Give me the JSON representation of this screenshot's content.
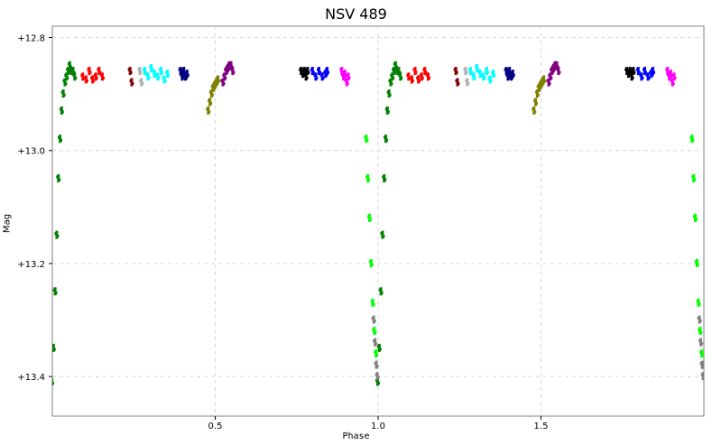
{
  "chart_data": {
    "type": "scatter",
    "title": "NSV 489",
    "xlabel": "Phase",
    "ylabel": "Mag",
    "xlim": [
      0.0,
      2.0
    ],
    "ylim": [
      12.78,
      13.47
    ],
    "y_inverted": true,
    "grid": true,
    "x_ticks": [
      0.5,
      1.0,
      1.5
    ],
    "x_tick_labels": [
      "0.5",
      "1.0",
      "1.5"
    ],
    "y_ticks": [
      12.8,
      13.0,
      13.2,
      13.4
    ],
    "y_tick_labels": [
      "+12.8",
      "+13.0",
      "+13.2",
      "+13.4"
    ],
    "phase_repeat": 1.0,
    "series": [
      {
        "color": "#008000",
        "x": [
          0.0,
          0.005,
          0.01,
          0.015,
          0.02,
          0.025,
          0.03,
          0.035,
          0.04,
          0.045,
          0.05,
          0.055,
          0.06,
          0.065,
          0.07
        ],
        "y": [
          13.41,
          13.35,
          13.25,
          13.15,
          13.05,
          12.98,
          12.93,
          12.9,
          12.88,
          12.87,
          12.86,
          12.85,
          12.86,
          12.86,
          12.87
        ]
      },
      {
        "color": "#00ff00",
        "x": [
          0.965,
          0.97,
          0.975,
          0.98,
          0.985,
          0.99,
          0.995
        ],
        "y": [
          12.98,
          13.05,
          13.12,
          13.2,
          13.27,
          13.32,
          13.36
        ]
      },
      {
        "color": "#808080",
        "x": [
          0.988,
          0.992,
          0.996,
          0.999
        ],
        "y": [
          13.3,
          13.34,
          13.38,
          13.4
        ]
      },
      {
        "color": "#ff0000",
        "x": [
          0.095,
          0.105,
          0.115,
          0.125,
          0.135,
          0.145,
          0.155
        ],
        "y": [
          12.87,
          12.875,
          12.86,
          12.875,
          12.87,
          12.86,
          12.87
        ]
      },
      {
        "color": "#800000",
        "x": [
          0.24,
          0.245
        ],
        "y": [
          12.86,
          12.88
        ]
      },
      {
        "color": "#b0b0b0",
        "x": [
          0.27,
          0.275
        ],
        "y": [
          12.86,
          12.88
        ]
      },
      {
        "color": "#00ffff",
        "x": [
          0.285,
          0.295,
          0.305,
          0.315,
          0.325,
          0.335,
          0.345,
          0.355
        ],
        "y": [
          12.86,
          12.87,
          12.855,
          12.865,
          12.87,
          12.86,
          12.875,
          12.865
        ]
      },
      {
        "color": "#000080",
        "x": [
          0.395,
          0.4,
          0.405,
          0.41,
          0.415
        ],
        "y": [
          12.86,
          12.87,
          12.86,
          12.87,
          12.865
        ]
      },
      {
        "color": "#808000",
        "x": [
          0.48,
          0.485,
          0.49,
          0.495,
          0.5,
          0.505,
          0.51
        ],
        "y": [
          12.93,
          12.915,
          12.9,
          12.89,
          12.885,
          12.88,
          12.875
        ]
      },
      {
        "color": "#800080",
        "x": [
          0.525,
          0.53,
          0.535,
          0.54,
          0.545,
          0.55,
          0.555
        ],
        "y": [
          12.88,
          12.87,
          12.86,
          12.855,
          12.85,
          12.85,
          12.86
        ]
      },
      {
        "color": "#000000",
        "x": [
          0.765,
          0.77,
          0.775,
          0.78,
          0.785
        ],
        "y": [
          12.86,
          12.865,
          12.86,
          12.87,
          12.86
        ]
      },
      {
        "color": "#0000ff",
        "x": [
          0.8,
          0.81,
          0.82,
          0.83,
          0.84,
          0.845
        ],
        "y": [
          12.86,
          12.87,
          12.86,
          12.87,
          12.865,
          12.86
        ]
      },
      {
        "color": "#ff00ff",
        "x": [
          0.89,
          0.895,
          0.9,
          0.905,
          0.91
        ],
        "y": [
          12.86,
          12.87,
          12.865,
          12.88,
          12.87
        ]
      }
    ]
  }
}
